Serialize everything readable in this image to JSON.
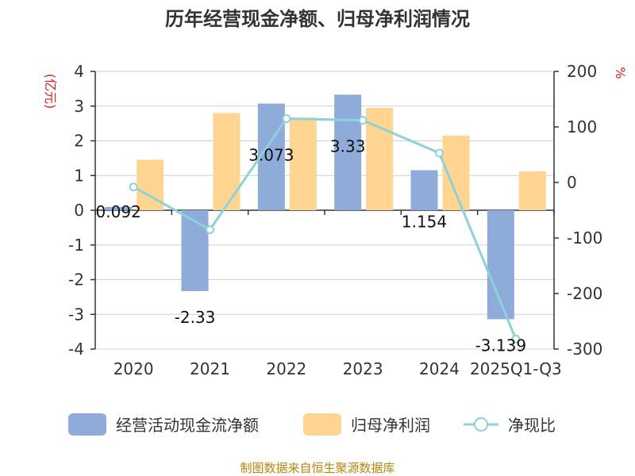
{
  "title": "历年经营现金净额、归母净利润情况",
  "left_unit": "(亿元)",
  "right_unit": "%",
  "source": "制图数据来自恒生聚源数据库",
  "colors": {
    "cash_flow": "#8eabd9",
    "net_profit": "#ffd591",
    "ratio": "#8cd3d9",
    "unit_text": "#e02020",
    "source_text": "#b8860b"
  },
  "chart_data": {
    "type": "bar",
    "title": "历年经营现金净额、归母净利润情况",
    "categories": [
      "2020",
      "2021",
      "2022",
      "2023",
      "2024",
      "2025Q1-Q3"
    ],
    "y_left": {
      "label": "(亿元)",
      "ylim": [
        -4,
        4
      ],
      "ticks": [
        4,
        3,
        2,
        1,
        0,
        -1,
        -2,
        -3,
        -4
      ]
    },
    "y_right": {
      "label": "%",
      "ylim": [
        -300,
        200
      ],
      "ticks": [
        200,
        100,
        0,
        -100,
        -200,
        -300
      ]
    },
    "series": [
      {
        "name": "经营活动现金流净额",
        "type": "bar",
        "axis": "left",
        "values": [
          0.092,
          -2.33,
          3.073,
          3.33,
          1.154,
          -3.139
        ],
        "labels": [
          "0.092",
          "-2.33",
          "3.073",
          "3.33",
          "1.154",
          "-3.139"
        ]
      },
      {
        "name": "归母净利润",
        "type": "bar",
        "axis": "left",
        "values": [
          1.45,
          2.8,
          2.67,
          2.95,
          2.15,
          1.12
        ]
      },
      {
        "name": "净现比",
        "type": "line",
        "axis": "right",
        "values": [
          -8,
          -85,
          115,
          112,
          53,
          -282
        ]
      }
    ],
    "grid": true,
    "legend": "bottom"
  }
}
